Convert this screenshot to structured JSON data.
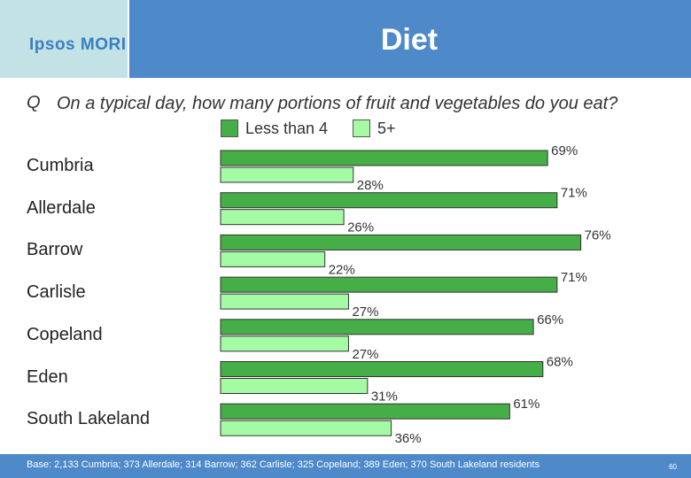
{
  "brand": {
    "logo_text": "Ipsos MORI"
  },
  "header": {
    "title": "Diet"
  },
  "question": {
    "prefix": "Q",
    "text": "On a typical day, how many portions of fruit and vegetables do you eat?"
  },
  "colors": {
    "less_than_4": "#46ae46",
    "five_plus": "#a4fba4",
    "header": "#4e89c9",
    "logo_bg": "#c2e2e6"
  },
  "chart_data": {
    "type": "bar",
    "orientation": "horizontal",
    "categories": [
      "Cumbria",
      "Allerdale",
      "Barrow",
      "Carlisle",
      "Copeland",
      "Eden",
      "South Lakeland"
    ],
    "series": [
      {
        "name": "Less than 4",
        "values": [
          69,
          71,
          76,
          71,
          66,
          68,
          61
        ],
        "labels": [
          "69%",
          "71%",
          "76%",
          "71%",
          "66%",
          "68%",
          "61%"
        ]
      },
      {
        "name": "5+",
        "values": [
          28,
          26,
          22,
          27,
          27,
          31,
          36
        ],
        "labels": [
          "28%",
          "26%",
          "22%",
          "27%",
          "27%",
          "31%",
          "36%"
        ]
      }
    ],
    "xlim": [
      0,
      100
    ],
    "legend_position": "top"
  },
  "footer": {
    "base_note": "Base: 2,133 Cumbria; 373 Allerdale; 314 Barrow; 362 Carlisle; 325 Copeland; 389 Eden; 370 South Lakeland residents",
    "page_number": "60"
  }
}
